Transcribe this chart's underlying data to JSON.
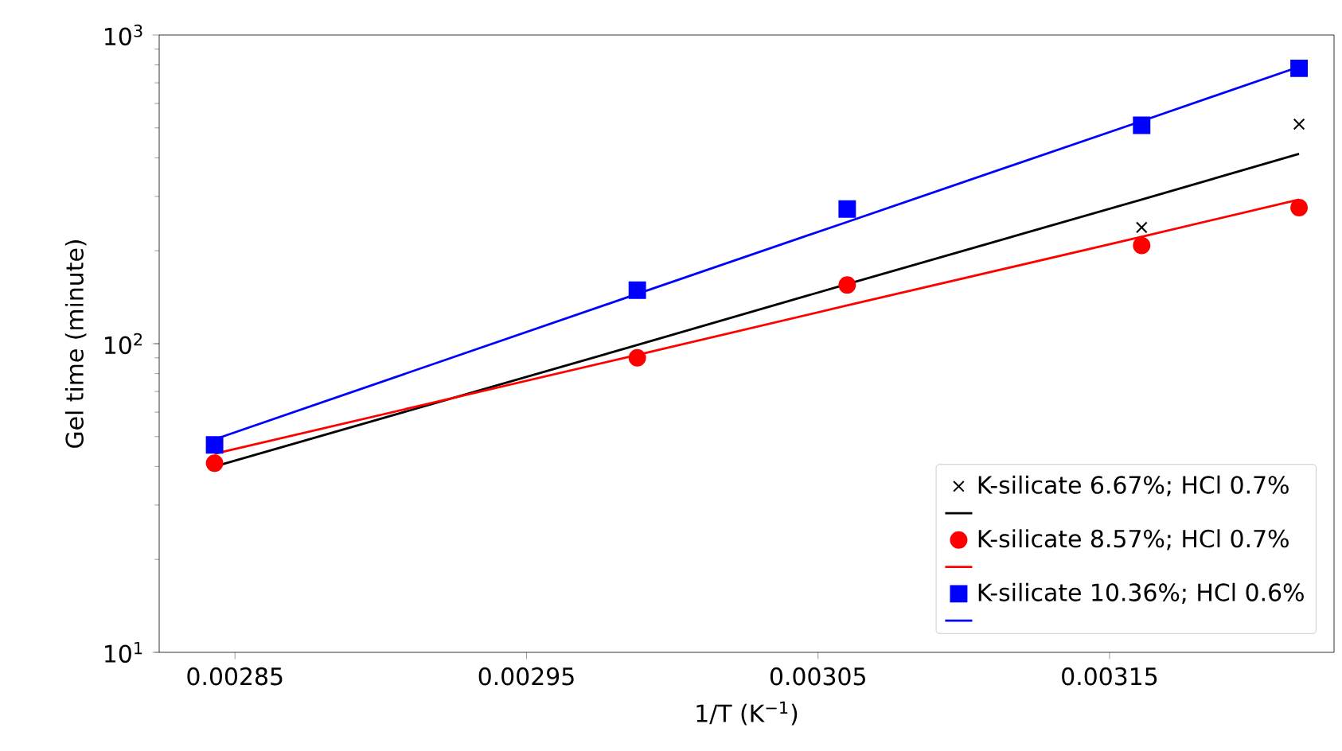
{
  "chart_data": {
    "type": "scatter",
    "xlabel": "1/T (K$^{−1}$)",
    "ylabel": "Gel time (minute)",
    "log": "y",
    "xlim": [
      0.002824,
      0.003227
    ],
    "xticks": [
      0.00285,
      0.00295,
      0.00305,
      0.00315
    ],
    "ylim": [
      10,
      1000
    ],
    "yticks": [
      {
        "value": 10,
        "label": "10$^{1}$"
      },
      {
        "value": 100,
        "label": "10$^{2}$"
      },
      {
        "value": 1000,
        "label": "10$^{3}$"
      }
    ],
    "legend": "bottom right",
    "grid": false,
    "x": [
      0.002843,
      0.002988,
      0.00306,
      0.003161,
      0.003215
    ],
    "series": [
      {
        "name": "K-silicate 6.67%; HCl 0.7%",
        "marker": "cross",
        "color": "#000000",
        "values": [
          null,
          null,
          null,
          238,
          514
        ]
      },
      {
        "type": "line",
        "color": "#000000",
        "values": [
          40,
          99,
          156,
          293,
          412
        ]
      },
      {
        "name": "K-silicate 8.57%; HCl 0.7%",
        "marker": "circle",
        "color": "#ff0000",
        "values": [
          41,
          90,
          155,
          208,
          276
        ]
      },
      {
        "type": "line",
        "color": "#ff0000",
        "values": [
          44,
          92,
          133,
          222,
          293
        ]
      },
      {
        "name": "K-silicate 10.36%; HCl 0.6%",
        "marker": "square",
        "color": "#0000ff",
        "values": [
          47,
          149,
          273,
          510,
          780
        ]
      },
      {
        "type": "line",
        "color": "#0000ff",
        "values": [
          49,
          145,
          248,
          526,
          789
        ]
      }
    ]
  }
}
